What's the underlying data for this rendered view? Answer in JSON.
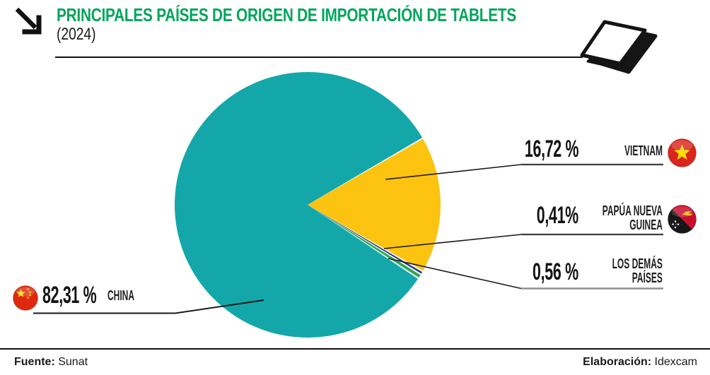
{
  "header": {
    "title": "PRINCIPALES PAÍSES DE ORIGEN DE IMPORTACIÓN DE TABLETS",
    "subtitle": "(2024)",
    "title_color": "#00A55C",
    "corner_icon": "arrow-down-right-icon",
    "illustration": "tablet-illustration"
  },
  "footer": {
    "source_label": "Fuente:",
    "source_value": " Sunat",
    "elaboration_label": "Elaboración:",
    "elaboration_value": " Idexcam"
  },
  "chart_data": {
    "type": "pie",
    "title": "PRINCIPALES PAÍSES DE ORIGEN DE IMPORTACIÓN DE TABLETS (2024)",
    "unit": "%",
    "legend_position": "callout-lines",
    "grid": false,
    "slices": [
      {
        "name": "CHINA",
        "lines": [
          "CHINA"
        ],
        "value": 82.31,
        "display": "82,31 %",
        "color": "#14A7AA",
        "flag": "china-flag-icon"
      },
      {
        "name": "VIETNAM",
        "lines": [
          "VIETNAM"
        ],
        "value": 16.72,
        "display": "16,72 %",
        "color": "#FCC311",
        "flag": "vietnam-flag-icon"
      },
      {
        "name": "PAPÚA NUEVA GUINEA",
        "lines": [
          "PAPÚA NUEVA",
          "GUINEA"
        ],
        "value": 0.41,
        "display": "0,41%",
        "color": "#2B3990",
        "flag": "papua-new-guinea-flag-icon"
      },
      {
        "name": "LOS DEMÁS PAÍSES",
        "lines": [
          "LOS DEMÁS",
          "PAÍSES"
        ],
        "value": 0.56,
        "display": "0,56 %",
        "color": "#2BA950",
        "flag": null
      }
    ],
    "layout": {
      "vietnam_wedge_centered_on": "right horizontal axis",
      "order_clockwise_from_right": [
        "VIETNAM",
        "PAPÚA NUEVA GUINEA",
        "LOS DEMÁS PAÍSES",
        "CHINA"
      ]
    }
  }
}
